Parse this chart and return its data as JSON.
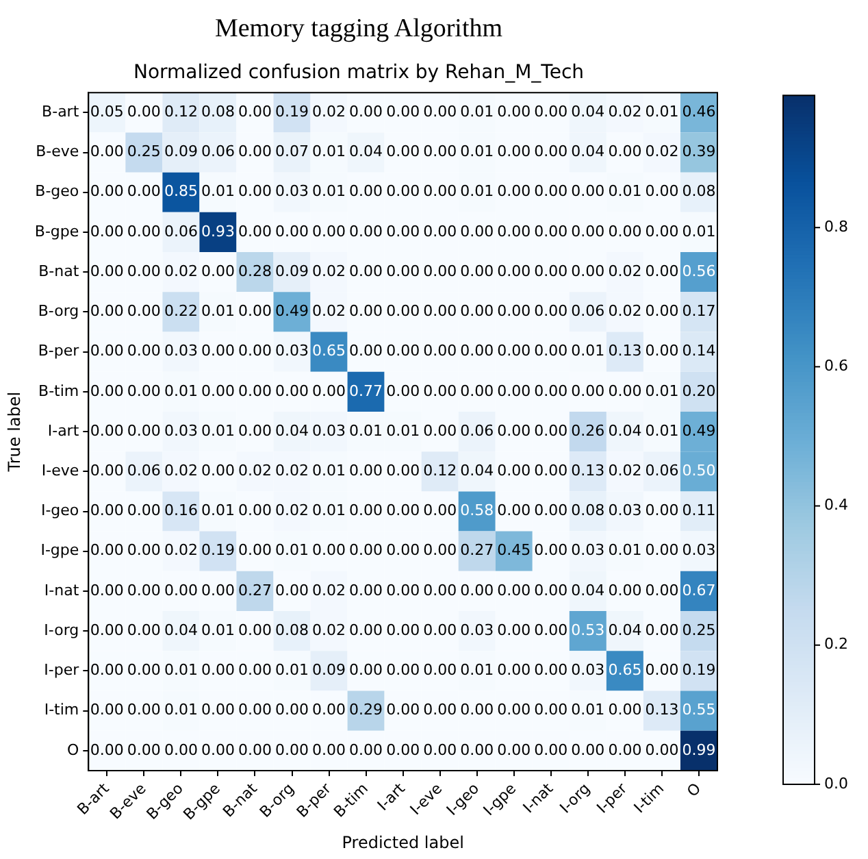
{
  "chart_data": {
    "type": "heatmap",
    "title": "Memory tagging Algorithm",
    "subtitle": "Normalized confusion matrix by Rehan_M_Tech",
    "xlabel": "Predicted label",
    "ylabel": "True label",
    "categories": [
      "B-art",
      "B-eve",
      "B-geo",
      "B-gpe",
      "B-nat",
      "B-org",
      "B-per",
      "B-tim",
      "I-art",
      "I-eve",
      "I-geo",
      "I-gpe",
      "I-nat",
      "I-org",
      "I-per",
      "I-tim",
      "O"
    ],
    "y_categories": [
      "B-art",
      "B-eve",
      "B-geo",
      "B-gpe",
      "B-nat",
      "B-org",
      "B-per",
      "B-tim",
      "I-art",
      "I-eve",
      "I-geo",
      "I-gpe",
      "I-nat",
      "I-org",
      "I-per",
      "I-tim",
      "O"
    ],
    "cells": [
      [
        0.05,
        0.0,
        0.12,
        0.08,
        0.0,
        0.19,
        0.02,
        0.0,
        0.0,
        0.0,
        0.01,
        0.0,
        0.0,
        0.04,
        0.02,
        0.01,
        0.46
      ],
      [
        0.0,
        0.25,
        0.09,
        0.06,
        0.0,
        0.07,
        0.01,
        0.04,
        0.0,
        0.0,
        0.01,
        0.0,
        0.0,
        0.04,
        0.0,
        0.02,
        0.39
      ],
      [
        0.0,
        0.0,
        0.85,
        0.01,
        0.0,
        0.03,
        0.01,
        0.0,
        0.0,
        0.0,
        0.01,
        0.0,
        0.0,
        0.0,
        0.01,
        0.0,
        0.08
      ],
      [
        0.0,
        0.0,
        0.06,
        0.93,
        0.0,
        0.0,
        0.0,
        0.0,
        0.0,
        0.0,
        0.0,
        0.0,
        0.0,
        0.0,
        0.0,
        0.0,
        0.01
      ],
      [
        0.0,
        0.0,
        0.02,
        0.0,
        0.28,
        0.09,
        0.02,
        0.0,
        0.0,
        0.0,
        0.0,
        0.0,
        0.0,
        0.0,
        0.02,
        0.0,
        0.56
      ],
      [
        0.0,
        0.0,
        0.22,
        0.01,
        0.0,
        0.49,
        0.02,
        0.0,
        0.0,
        0.0,
        0.0,
        0.0,
        0.0,
        0.06,
        0.02,
        0.0,
        0.17
      ],
      [
        0.0,
        0.0,
        0.03,
        0.0,
        0.0,
        0.03,
        0.65,
        0.0,
        0.0,
        0.0,
        0.0,
        0.0,
        0.0,
        0.01,
        0.13,
        0.0,
        0.14
      ],
      [
        0.0,
        0.0,
        0.01,
        0.0,
        0.0,
        0.0,
        0.0,
        0.77,
        0.0,
        0.0,
        0.0,
        0.0,
        0.0,
        0.0,
        0.0,
        0.01,
        0.2
      ],
      [
        0.0,
        0.0,
        0.03,
        0.01,
        0.0,
        0.04,
        0.03,
        0.01,
        0.01,
        0.0,
        0.06,
        0.0,
        0.0,
        0.26,
        0.04,
        0.01,
        0.49
      ],
      [
        0.0,
        0.06,
        0.02,
        0.0,
        0.02,
        0.02,
        0.01,
        0.0,
        0.0,
        0.12,
        0.04,
        0.0,
        0.0,
        0.13,
        0.02,
        0.06,
        0.5
      ],
      [
        0.0,
        0.0,
        0.16,
        0.01,
        0.0,
        0.02,
        0.01,
        0.0,
        0.0,
        0.0,
        0.58,
        0.0,
        0.0,
        0.08,
        0.03,
        0.0,
        0.11
      ],
      [
        0.0,
        0.0,
        0.02,
        0.19,
        0.0,
        0.01,
        0.0,
        0.0,
        0.0,
        0.0,
        0.27,
        0.45,
        0.0,
        0.03,
        0.01,
        0.0,
        0.03
      ],
      [
        0.0,
        0.0,
        0.0,
        0.0,
        0.27,
        0.0,
        0.02,
        0.0,
        0.0,
        0.0,
        0.0,
        0.0,
        0.0,
        0.04,
        0.0,
        0.0,
        0.67
      ],
      [
        0.0,
        0.0,
        0.04,
        0.01,
        0.0,
        0.08,
        0.02,
        0.0,
        0.0,
        0.0,
        0.03,
        0.0,
        0.0,
        0.53,
        0.04,
        0.0,
        0.25
      ],
      [
        0.0,
        0.0,
        0.01,
        0.0,
        0.0,
        0.01,
        0.09,
        0.0,
        0.0,
        0.0,
        0.01,
        0.0,
        0.0,
        0.03,
        0.65,
        0.0,
        0.19
      ],
      [
        0.0,
        0.0,
        0.01,
        0.0,
        0.0,
        0.0,
        0.0,
        0.29,
        0.0,
        0.0,
        0.0,
        0.0,
        0.0,
        0.01,
        0.0,
        0.13,
        0.55
      ],
      [
        0.0,
        0.0,
        0.0,
        0.0,
        0.0,
        0.0,
        0.0,
        0.0,
        0.0,
        0.0,
        0.0,
        0.0,
        0.0,
        0.0,
        0.0,
        0.0,
        0.99
      ]
    ],
    "cell_labels": [
      [
        "0.05",
        "0.00",
        "0.12",
        "0.08",
        "0.00",
        "0.19",
        "0.02",
        "0.00",
        "0.00",
        "0.00",
        "0.01",
        "0.00",
        "0.00",
        "0.04",
        "0.02",
        "0.01",
        "0.46"
      ],
      [
        "0.00",
        "0.25",
        "0.09",
        "0.06",
        "0.00",
        "0.07",
        "0.01",
        "0.04",
        "0.00",
        "0.00",
        "0.01",
        "0.00",
        "0.00",
        "0.04",
        "0.00",
        "0.02",
        "0.39"
      ],
      [
        "0.00",
        "0.00",
        "0.85",
        "0.01",
        "0.00",
        "0.03",
        "0.01",
        "0.00",
        "0.00",
        "0.00",
        "0.01",
        "0.00",
        "0.00",
        "0.00",
        "0.01",
        "0.00",
        "0.08"
      ],
      [
        "0.00",
        "0.00",
        "0.06",
        "0.93",
        "0.00",
        "0.00",
        "0.00",
        "0.00",
        "0.00",
        "0.00",
        "0.00",
        "0.00",
        "0.00",
        "0.00",
        "0.00",
        "0.00",
        "0.01"
      ],
      [
        "0.00",
        "0.00",
        "0.02",
        "0.00",
        "0.28",
        "0.09",
        "0.02",
        "0.00",
        "0.00",
        "0.00",
        "0.00",
        "0.00",
        "0.00",
        "0.00",
        "0.02",
        "0.00",
        "0.56"
      ],
      [
        "0.00",
        "0.00",
        "0.22",
        "0.01",
        "0.00",
        "0.49",
        "0.02",
        "0.00",
        "0.00",
        "0.00",
        "0.00",
        "0.00",
        "0.00",
        "0.06",
        "0.02",
        "0.00",
        "0.17"
      ],
      [
        "0.00",
        "0.00",
        "0.03",
        "0.00",
        "0.00",
        "0.03",
        "0.65",
        "0.00",
        "0.00",
        "0.00",
        "0.00",
        "0.00",
        "0.00",
        "0.01",
        "0.13",
        "0.00",
        "0.14"
      ],
      [
        "0.00",
        "0.00",
        "0.01",
        "0.00",
        "0.00",
        "0.00",
        "0.00",
        "0.77",
        "0.00",
        "0.00",
        "0.00",
        "0.00",
        "0.00",
        "0.00",
        "0.00",
        "0.01",
        "0.20"
      ],
      [
        "0.00",
        "0.00",
        "0.03",
        "0.01",
        "0.00",
        "0.04",
        "0.03",
        "0.01",
        "0.01",
        "0.00",
        "0.06",
        "0.00",
        "0.00",
        "0.26",
        "0.04",
        "0.01",
        "0.49"
      ],
      [
        "0.00",
        "0.06",
        "0.02",
        "0.00",
        "0.02",
        "0.02",
        "0.01",
        "0.00",
        "0.00",
        "0.12",
        "0.04",
        "0.00",
        "0.00",
        "0.13",
        "0.02",
        "0.06",
        "0.50"
      ],
      [
        "0.00",
        "0.00",
        "0.16",
        "0.01",
        "0.00",
        "0.02",
        "0.01",
        "0.00",
        "0.00",
        "0.00",
        "0.58",
        "0.00",
        "0.00",
        "0.08",
        "0.03",
        "0.00",
        "0.11"
      ],
      [
        "0.00",
        "0.00",
        "0.02",
        "0.19",
        "0.00",
        "0.01",
        "0.00",
        "0.00",
        "0.00",
        "0.00",
        "0.27",
        "0.45",
        "0.00",
        "0.03",
        "0.01",
        "0.00",
        "0.03"
      ],
      [
        "0.00",
        "0.00",
        "0.00",
        "0.00",
        "0.27",
        "0.00",
        "0.02",
        "0.00",
        "0.00",
        "0.00",
        "0.00",
        "0.00",
        "0.00",
        "0.04",
        "0.00",
        "0.00",
        "0.67"
      ],
      [
        "0.00",
        "0.00",
        "0.04",
        "0.01",
        "0.00",
        "0.08",
        "0.02",
        "0.00",
        "0.00",
        "0.00",
        "0.03",
        "0.00",
        "0.00",
        "0.53",
        "0.04",
        "0.00",
        "0.25"
      ],
      [
        "0.00",
        "0.00",
        "0.01",
        "0.00",
        "0.00",
        "0.01",
        "0.09",
        "0.00",
        "0.00",
        "0.00",
        "0.01",
        "0.00",
        "0.00",
        "0.03",
        "0.65",
        "0.00",
        "0.19"
      ],
      [
        "0.00",
        "0.00",
        "0.01",
        "0.00",
        "0.00",
        "0.00",
        "0.00",
        "0.29",
        "0.00",
        "0.00",
        "0.00",
        "0.00",
        "0.00",
        "0.01",
        "0.00",
        "0.13",
        "0.55"
      ],
      [
        "0.00",
        "0.00",
        "0.00",
        "0.00",
        "0.00",
        "0.00",
        "0.00",
        "0.00",
        "0.00",
        "0.00",
        "0.00",
        "0.00",
        "0.00",
        "0.00",
        "0.00",
        "0.00",
        "0.99"
      ]
    ],
    "clim": [
      0,
      0.99
    ],
    "cticks": [
      {
        "value": 0,
        "label": "0.0"
      },
      {
        "value": 0.2,
        "label": "0.2"
      },
      {
        "value": 0.4,
        "label": "0.4"
      },
      {
        "value": 0.6,
        "label": "0.6"
      },
      {
        "value": 0.8,
        "label": "0.8"
      }
    ]
  }
}
